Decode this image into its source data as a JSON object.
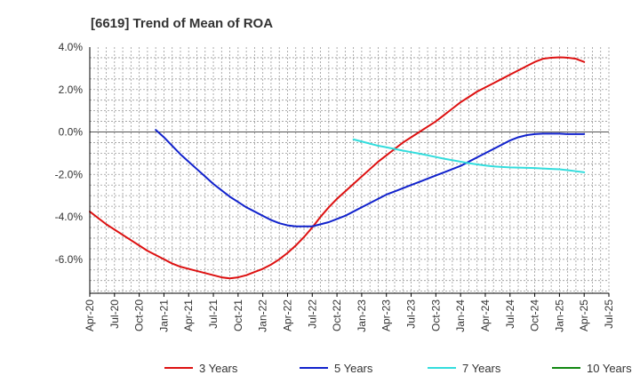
{
  "chart_data": {
    "type": "line",
    "title": "[6619]  Trend of Mean of ROA",
    "xlabel": "",
    "ylabel": "",
    "x_ticks": [
      "Apr-20",
      "Jul-20",
      "Oct-20",
      "Jan-21",
      "Apr-21",
      "Jul-21",
      "Oct-21",
      "Jan-22",
      "Apr-22",
      "Jul-22",
      "Oct-22",
      "Jan-23",
      "Apr-23",
      "Jul-23",
      "Oct-23",
      "Jan-24",
      "Apr-24",
      "Jul-24",
      "Oct-24",
      "Jan-25",
      "Apr-25",
      "Jul-25"
    ],
    "y_ticks": [
      "4.0%",
      "2.0%",
      "0.0%",
      "-2.0%",
      "-4.0%",
      "-6.0%"
    ],
    "y_tick_values": [
      4.0,
      2.0,
      0.0,
      -2.0,
      -4.0,
      -6.0
    ],
    "ylim": [
      -7.6,
      4.0
    ],
    "grid": true,
    "legend_position": "bottom",
    "colors": {
      "3 Years": "#dd1111",
      "5 Years": "#1122cc",
      "7 Years": "#33dddd",
      "10 Years": "#118811",
      "zero_line": "#555555",
      "grid": "#999999",
      "axis": "#000000"
    },
    "series": [
      {
        "name": "3 Years",
        "x": [
          "Apr-20",
          "May-20",
          "Jun-20",
          "Jul-20",
          "Aug-20",
          "Sep-20",
          "Oct-20",
          "Nov-20",
          "Dec-20",
          "Jan-21",
          "Feb-21",
          "Mar-21",
          "Apr-21",
          "May-21",
          "Jun-21",
          "Jul-21",
          "Aug-21",
          "Sep-21",
          "Oct-21",
          "Nov-21",
          "Dec-21",
          "Jan-22",
          "Feb-22",
          "Mar-22",
          "Apr-22",
          "May-22",
          "Jun-22",
          "Jul-22",
          "Aug-22",
          "Sep-22",
          "Oct-22",
          "Nov-22",
          "Dec-22",
          "Jan-23",
          "Feb-23",
          "Mar-23",
          "Apr-23",
          "May-23",
          "Jun-23",
          "Jul-23",
          "Aug-23",
          "Sep-23",
          "Oct-23",
          "Nov-23",
          "Dec-23",
          "Jan-24",
          "Feb-24",
          "Mar-24",
          "Apr-24",
          "May-24",
          "Jun-24",
          "Jul-24",
          "Aug-24",
          "Sep-24",
          "Oct-24",
          "Nov-24",
          "Dec-24",
          "Jan-25",
          "Feb-25",
          "Mar-25",
          "Apr-25"
        ],
        "values": [
          -3.75,
          -4.05,
          -4.35,
          -4.6,
          -4.85,
          -5.1,
          -5.35,
          -5.6,
          -5.8,
          -6.0,
          -6.2,
          -6.35,
          -6.45,
          -6.55,
          -6.65,
          -6.75,
          -6.85,
          -6.9,
          -6.85,
          -6.75,
          -6.6,
          -6.45,
          -6.25,
          -6.0,
          -5.7,
          -5.35,
          -4.95,
          -4.5,
          -4.0,
          -3.55,
          -3.15,
          -2.8,
          -2.45,
          -2.1,
          -1.75,
          -1.4,
          -1.1,
          -0.8,
          -0.5,
          -0.25,
          0.0,
          0.25,
          0.5,
          0.8,
          1.1,
          1.4,
          1.65,
          1.9,
          2.1,
          2.3,
          2.5,
          2.7,
          2.9,
          3.1,
          3.3,
          3.45,
          3.5,
          3.52,
          3.5,
          3.45,
          3.3
        ]
      },
      {
        "name": "5 Years",
        "x": [
          "Dec-20",
          "Jan-21",
          "Feb-21",
          "Mar-21",
          "Apr-21",
          "May-21",
          "Jun-21",
          "Jul-21",
          "Aug-21",
          "Sep-21",
          "Oct-21",
          "Nov-21",
          "Dec-21",
          "Jan-22",
          "Feb-22",
          "Mar-22",
          "Apr-22",
          "May-22",
          "Jun-22",
          "Jul-22",
          "Aug-22",
          "Sep-22",
          "Oct-22",
          "Nov-22",
          "Dec-22",
          "Jan-23",
          "Feb-23",
          "Mar-23",
          "Apr-23",
          "May-23",
          "Jun-23",
          "Jul-23",
          "Aug-23",
          "Sep-23",
          "Oct-23",
          "Nov-23",
          "Dec-23",
          "Jan-24",
          "Feb-24",
          "Mar-24",
          "Apr-24",
          "May-24",
          "Jun-24",
          "Jul-24",
          "Aug-24",
          "Sep-24",
          "Oct-24",
          "Nov-24",
          "Dec-24",
          "Jan-25",
          "Feb-25",
          "Mar-25",
          "Apr-25"
        ],
        "values": [
          0.1,
          -0.25,
          -0.65,
          -1.05,
          -1.4,
          -1.75,
          -2.1,
          -2.45,
          -2.75,
          -3.05,
          -3.3,
          -3.55,
          -3.75,
          -3.95,
          -4.15,
          -4.3,
          -4.4,
          -4.45,
          -4.45,
          -4.45,
          -4.35,
          -4.25,
          -4.1,
          -3.95,
          -3.75,
          -3.55,
          -3.35,
          -3.15,
          -2.95,
          -2.8,
          -2.65,
          -2.5,
          -2.35,
          -2.2,
          -2.05,
          -1.9,
          -1.75,
          -1.6,
          -1.4,
          -1.2,
          -1.0,
          -0.8,
          -0.6,
          -0.4,
          -0.25,
          -0.15,
          -0.1,
          -0.08,
          -0.08,
          -0.08,
          -0.1,
          -0.1,
          -0.1
        ]
      },
      {
        "name": "7 Years",
        "x": [
          "Dec-22",
          "Jan-23",
          "Feb-23",
          "Mar-23",
          "Apr-23",
          "May-23",
          "Jun-23",
          "Jul-23",
          "Aug-23",
          "Sep-23",
          "Oct-23",
          "Nov-23",
          "Dec-23",
          "Jan-24",
          "Feb-24",
          "Mar-24",
          "Apr-24",
          "May-24",
          "Jun-24",
          "Jul-24",
          "Aug-24",
          "Sep-24",
          "Oct-24",
          "Nov-24",
          "Dec-24",
          "Jan-25",
          "Feb-25",
          "Mar-25",
          "Apr-25"
        ],
        "values": [
          -0.35,
          -0.45,
          -0.55,
          -0.65,
          -0.72,
          -0.8,
          -0.88,
          -0.95,
          -1.02,
          -1.1,
          -1.18,
          -1.26,
          -1.33,
          -1.4,
          -1.47,
          -1.53,
          -1.58,
          -1.62,
          -1.65,
          -1.67,
          -1.68,
          -1.69,
          -1.7,
          -1.72,
          -1.74,
          -1.76,
          -1.8,
          -1.85,
          -1.9
        ]
      },
      {
        "name": "10 Years",
        "x": [],
        "values": []
      }
    ]
  }
}
